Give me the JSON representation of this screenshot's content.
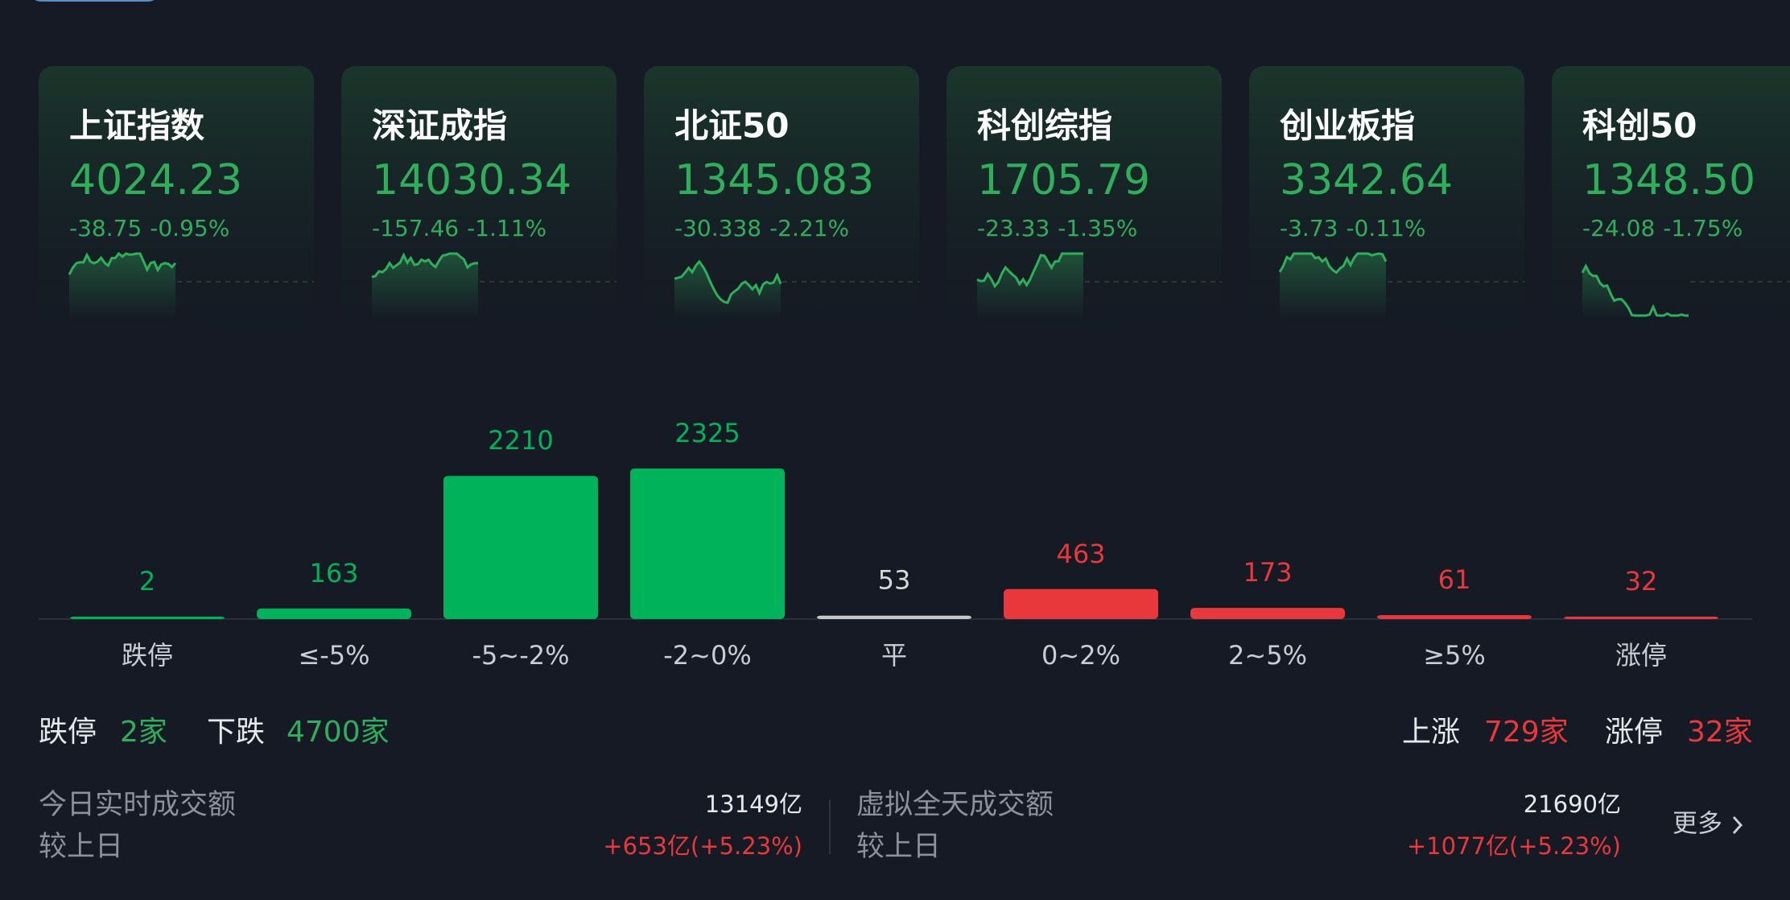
{
  "indices": [
    {
      "name": "上证指数",
      "value": "4024.23",
      "change": "-38.75",
      "pct": "-0.95%"
    },
    {
      "name": "深证成指",
      "value": "14030.34",
      "change": "-157.46",
      "pct": "-1.11%"
    },
    {
      "name": "北证50",
      "value": "1345.083",
      "change": "-30.338",
      "pct": "-2.21%"
    },
    {
      "name": "科创综指",
      "value": "1705.79",
      "change": "-23.33",
      "pct": "-1.35%"
    },
    {
      "name": "创业板指",
      "value": "3342.64",
      "change": "-3.73",
      "pct": "-0.11%"
    },
    {
      "name": "科创50",
      "value": "1348.50",
      "change": "-24.08",
      "pct": "-1.75%"
    }
  ],
  "chart_data": {
    "type": "bar",
    "categories": [
      "跌停",
      "≤-5%",
      "-5~-2%",
      "-2~0%",
      "平",
      "0~2%",
      "2~5%",
      "≥5%",
      "涨停"
    ],
    "values": [
      2,
      163,
      2210,
      2325,
      53,
      463,
      173,
      61,
      32
    ],
    "colors": [
      "#00b35b",
      "#00b35b",
      "#00b35b",
      "#00b35b",
      "#c8c8c8",
      "#e8383b",
      "#e8383b",
      "#e8383b",
      "#e8383b"
    ]
  },
  "summary": {
    "left": [
      {
        "label": "跌停",
        "value": "2家",
        "color": "#2fae5c"
      },
      {
        "label": "下跌",
        "value": "4700家",
        "color": "#2fae5c"
      }
    ],
    "right": [
      {
        "label": "上涨",
        "value": "729家",
        "color": "#e8383b"
      },
      {
        "label": "涨停",
        "value": "32家",
        "color": "#e8383b"
      }
    ]
  },
  "turnover": [
    {
      "label": "今日实时成交额",
      "value": "13149亿",
      "compare_label": "较上日",
      "compare": "+653亿(+5.23%)"
    },
    {
      "label": "虚拟全天成交额",
      "value": "21690亿",
      "compare_label": "较上日",
      "compare": "+1077亿(+5.23%)"
    }
  ],
  "more": "更多"
}
